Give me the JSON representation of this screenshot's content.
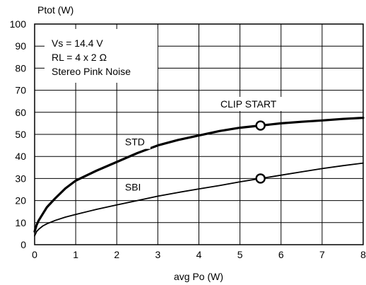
{
  "chart_data": {
    "type": "line",
    "title": "",
    "xlabel": "avg Po (W)",
    "ylabel": "Ptot (W)",
    "xlim": [
      0,
      8
    ],
    "ylim": [
      0,
      100
    ],
    "x_ticks": [
      "0",
      "1",
      "2",
      "3",
      "4",
      "5",
      "6",
      "7",
      "8"
    ],
    "y_ticks": [
      "0",
      "10",
      "20",
      "30",
      "40",
      "50",
      "60",
      "70",
      "80",
      "90",
      "100"
    ],
    "grid": true,
    "conditions": [
      "Vs = 14.4 V",
      "RL = 4 x 2 Ω",
      "Stereo Pink Noise"
    ],
    "series": [
      {
        "name": "STD",
        "style": "thick",
        "x": [
          0,
          0.05,
          0.1,
          0.2,
          0.3,
          0.5,
          0.75,
          1,
          1.5,
          2,
          2.5,
          3,
          3.5,
          4,
          4.5,
          5,
          5.5,
          6,
          6.5,
          7,
          7.5,
          8
        ],
        "y": [
          6,
          9,
          11,
          14,
          17,
          21,
          25.5,
          29,
          33.5,
          37.5,
          41.5,
          45,
          47.5,
          49.5,
          51.5,
          53,
          54,
          55,
          55.7,
          56.3,
          57,
          57.5
        ]
      },
      {
        "name": "SBI",
        "style": "thin",
        "x": [
          0,
          0.05,
          0.1,
          0.2,
          0.3,
          0.5,
          0.75,
          1,
          1.5,
          2,
          2.5,
          3,
          3.5,
          4,
          4.5,
          5,
          5.5,
          6,
          6.5,
          7,
          7.5,
          8
        ],
        "y": [
          4,
          6,
          7,
          8.5,
          9.5,
          11,
          12.5,
          13.7,
          16,
          18,
          20,
          22,
          23.7,
          25.3,
          26.8,
          28.5,
          30,
          31.5,
          33,
          34.5,
          35.8,
          37
        ]
      }
    ],
    "clip_start": {
      "label": "CLIP START",
      "points": [
        {
          "series": "STD",
          "x": 5.5,
          "y": 54
        },
        {
          "series": "SBI",
          "x": 5.5,
          "y": 30
        }
      ]
    },
    "series_labels": [
      {
        "text": "STD",
        "x": 2.2,
        "y": 45
      },
      {
        "text": "SBI",
        "x": 2.2,
        "y": 24.5
      }
    ]
  }
}
